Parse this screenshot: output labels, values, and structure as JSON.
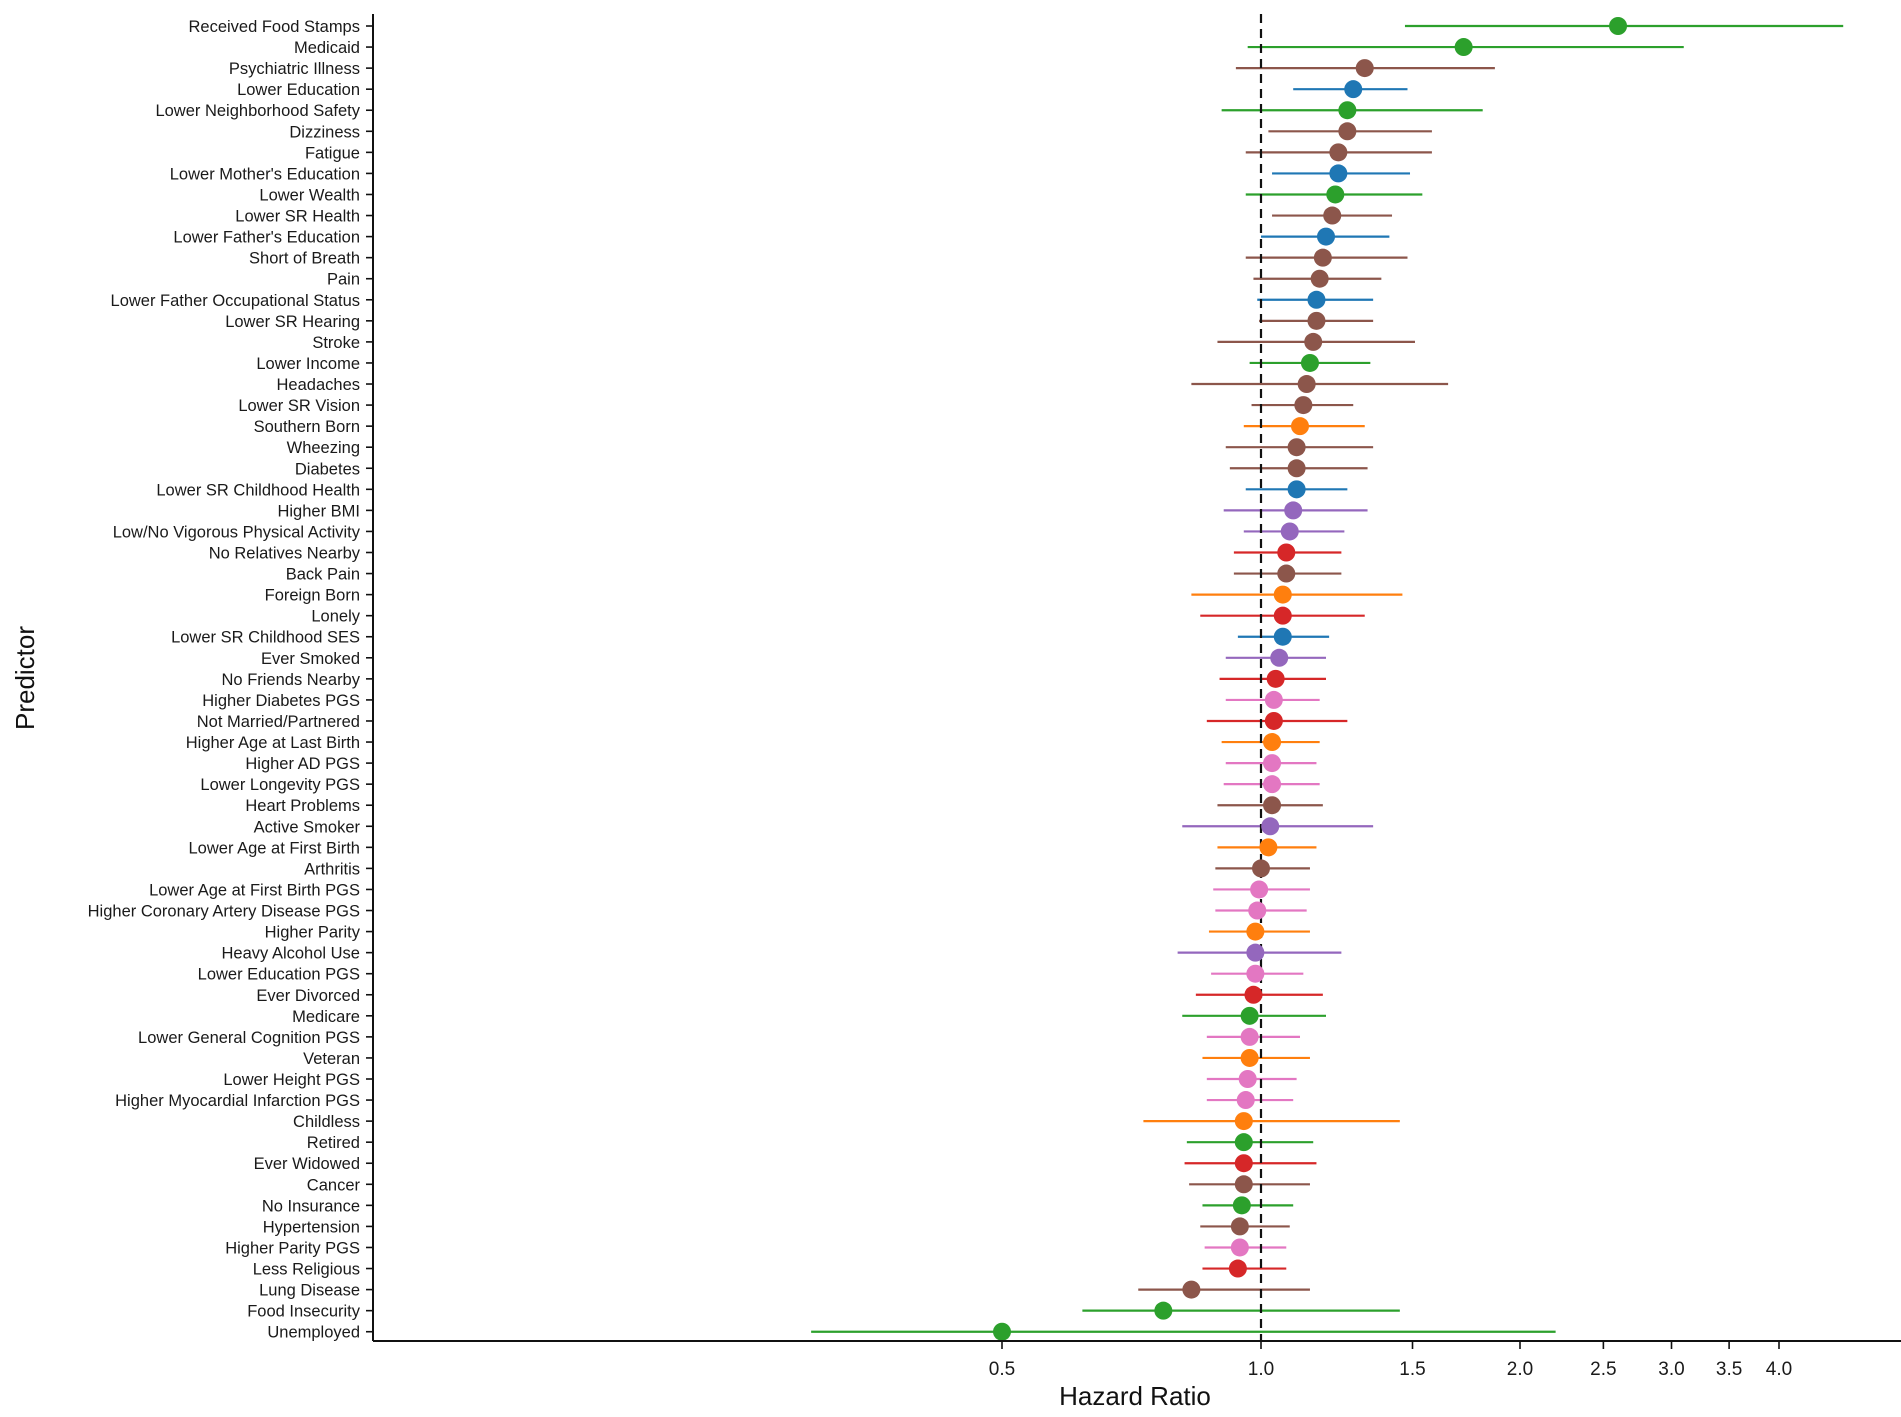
{
  "chart_data": {
    "type": "scatter",
    "subtype": "forest-plot",
    "title": "",
    "xlabel": "Hazard Ratio",
    "ylabel": "Predictor",
    "x_scale": "log",
    "xlim": [
      0.26,
      5.1
    ],
    "xticks": [
      0.5,
      1.0,
      1.5,
      2.0,
      2.5,
      3.0,
      3.5,
      4.0
    ],
    "xtick_labels": [
      "0.5",
      "1.0",
      "1.5",
      "2.0",
      "2.5",
      "3.0",
      "3.5",
      "4.0"
    ],
    "reference_line": 1.0,
    "grid": false,
    "legend": "none",
    "colors": {
      "blue": "#1f77b4",
      "orange": "#ff7f0e",
      "green": "#2ca02c",
      "red": "#d62728",
      "purple": "#9467bd",
      "brown": "#8c564b",
      "pink": "#e377c2"
    },
    "predictors": [
      {
        "label": "Received Food Stamps",
        "hr": 2.6,
        "lo": 1.47,
        "hi": 4.75,
        "color": "green"
      },
      {
        "label": "Medicaid",
        "hr": 1.72,
        "lo": 0.965,
        "hi": 3.1,
        "color": "green"
      },
      {
        "label": "Psychiatric Illness",
        "hr": 1.32,
        "lo": 0.935,
        "hi": 1.87,
        "color": "brown"
      },
      {
        "label": "Lower Education",
        "hr": 1.28,
        "lo": 1.09,
        "hi": 1.48,
        "color": "blue"
      },
      {
        "label": "Lower Neighborhood Safety",
        "hr": 1.26,
        "lo": 0.9,
        "hi": 1.81,
        "color": "green"
      },
      {
        "label": "Dizziness",
        "hr": 1.26,
        "lo": 1.02,
        "hi": 1.58,
        "color": "brown"
      },
      {
        "label": "Fatigue",
        "hr": 1.23,
        "lo": 0.96,
        "hi": 1.58,
        "color": "brown"
      },
      {
        "label": "Lower Mother's Education",
        "hr": 1.23,
        "lo": 1.03,
        "hi": 1.49,
        "color": "blue"
      },
      {
        "label": "Lower Wealth",
        "hr": 1.22,
        "lo": 0.96,
        "hi": 1.54,
        "color": "green"
      },
      {
        "label": "Lower SR Health",
        "hr": 1.21,
        "lo": 1.03,
        "hi": 1.42,
        "color": "brown"
      },
      {
        "label": "Lower Father's Education",
        "hr": 1.19,
        "lo": 1.0,
        "hi": 1.41,
        "color": "blue"
      },
      {
        "label": "Short of Breath",
        "hr": 1.18,
        "lo": 0.96,
        "hi": 1.48,
        "color": "brown"
      },
      {
        "label": "Pain",
        "hr": 1.17,
        "lo": 0.98,
        "hi": 1.38,
        "color": "brown"
      },
      {
        "label": "Lower Father Occupational Status",
        "hr": 1.16,
        "lo": 0.99,
        "hi": 1.35,
        "color": "blue"
      },
      {
        "label": "Lower SR Hearing",
        "hr": 1.16,
        "lo": 0.995,
        "hi": 1.35,
        "color": "brown"
      },
      {
        "label": "Stroke",
        "hr": 1.15,
        "lo": 0.89,
        "hi": 1.51,
        "color": "brown"
      },
      {
        "label": "Lower Income",
        "hr": 1.14,
        "lo": 0.97,
        "hi": 1.34,
        "color": "green"
      },
      {
        "label": "Headaches",
        "hr": 1.13,
        "lo": 0.83,
        "hi": 1.65,
        "color": "brown"
      },
      {
        "label": "Lower SR Vision",
        "hr": 1.12,
        "lo": 0.975,
        "hi": 1.28,
        "color": "brown"
      },
      {
        "label": "Southern Born",
        "hr": 1.11,
        "lo": 0.955,
        "hi": 1.32,
        "color": "orange"
      },
      {
        "label": "Wheezing",
        "hr": 1.1,
        "lo": 0.91,
        "hi": 1.35,
        "color": "brown"
      },
      {
        "label": "Diabetes",
        "hr": 1.1,
        "lo": 0.92,
        "hi": 1.33,
        "color": "brown"
      },
      {
        "label": "Lower SR Childhood Health",
        "hr": 1.1,
        "lo": 0.96,
        "hi": 1.26,
        "color": "blue"
      },
      {
        "label": "Higher BMI",
        "hr": 1.09,
        "lo": 0.905,
        "hi": 1.33,
        "color": "purple"
      },
      {
        "label": "Low/No Vigorous Physical Activity",
        "hr": 1.08,
        "lo": 0.955,
        "hi": 1.25,
        "color": "purple"
      },
      {
        "label": "No Relatives Nearby",
        "hr": 1.07,
        "lo": 0.93,
        "hi": 1.24,
        "color": "red"
      },
      {
        "label": "Back Pain",
        "hr": 1.07,
        "lo": 0.93,
        "hi": 1.24,
        "color": "brown"
      },
      {
        "label": "Foreign Born",
        "hr": 1.06,
        "lo": 0.83,
        "hi": 1.46,
        "color": "orange"
      },
      {
        "label": "Lonely",
        "hr": 1.06,
        "lo": 0.85,
        "hi": 1.32,
        "color": "red"
      },
      {
        "label": "Lower SR Childhood SES",
        "hr": 1.06,
        "lo": 0.94,
        "hi": 1.2,
        "color": "blue"
      },
      {
        "label": "Ever Smoked",
        "hr": 1.05,
        "lo": 0.91,
        "hi": 1.19,
        "color": "purple"
      },
      {
        "label": "No Friends Nearby",
        "hr": 1.04,
        "lo": 0.895,
        "hi": 1.19,
        "color": "red"
      },
      {
        "label": "Higher Diabetes PGS",
        "hr": 1.035,
        "lo": 0.91,
        "hi": 1.17,
        "color": "pink"
      },
      {
        "label": "Not Married/Partnered",
        "hr": 1.035,
        "lo": 0.865,
        "hi": 1.26,
        "color": "red"
      },
      {
        "label": "Higher Age at Last Birth",
        "hr": 1.03,
        "lo": 0.9,
        "hi": 1.17,
        "color": "orange"
      },
      {
        "label": "Higher AD PGS",
        "hr": 1.03,
        "lo": 0.91,
        "hi": 1.16,
        "color": "pink"
      },
      {
        "label": "Lower Longevity PGS",
        "hr": 1.03,
        "lo": 0.905,
        "hi": 1.17,
        "color": "pink"
      },
      {
        "label": "Heart Problems",
        "hr": 1.03,
        "lo": 0.89,
        "hi": 1.18,
        "color": "brown"
      },
      {
        "label": "Active Smoker",
        "hr": 1.025,
        "lo": 0.81,
        "hi": 1.35,
        "color": "purple"
      },
      {
        "label": "Lower Age at First Birth",
        "hr": 1.02,
        "lo": 0.89,
        "hi": 1.16,
        "color": "orange"
      },
      {
        "label": "Arthritis",
        "hr": 1.0,
        "lo": 0.885,
        "hi": 1.14,
        "color": "brown"
      },
      {
        "label": "Lower Age at First Birth PGS",
        "hr": 0.995,
        "lo": 0.88,
        "hi": 1.14,
        "color": "pink"
      },
      {
        "label": "Higher Coronary Artery Disease PGS",
        "hr": 0.99,
        "lo": 0.885,
        "hi": 1.13,
        "color": "pink"
      },
      {
        "label": "Higher Parity",
        "hr": 0.985,
        "lo": 0.87,
        "hi": 1.14,
        "color": "orange"
      },
      {
        "label": "Heavy Alcohol Use",
        "hr": 0.985,
        "lo": 0.8,
        "hi": 1.24,
        "color": "purple"
      },
      {
        "label": "Lower Education PGS",
        "hr": 0.985,
        "lo": 0.875,
        "hi": 1.12,
        "color": "pink"
      },
      {
        "label": "Ever Divorced",
        "hr": 0.98,
        "lo": 0.84,
        "hi": 1.18,
        "color": "red"
      },
      {
        "label": "Medicare",
        "hr": 0.97,
        "lo": 0.81,
        "hi": 1.19,
        "color": "green"
      },
      {
        "label": "Lower General Cognition PGS",
        "hr": 0.97,
        "lo": 0.865,
        "hi": 1.11,
        "color": "pink"
      },
      {
        "label": "Veteran",
        "hr": 0.97,
        "lo": 0.855,
        "hi": 1.14,
        "color": "orange"
      },
      {
        "label": "Lower Height PGS",
        "hr": 0.965,
        "lo": 0.865,
        "hi": 1.1,
        "color": "pink"
      },
      {
        "label": "Higher Myocardial Infarction PGS",
        "hr": 0.96,
        "lo": 0.865,
        "hi": 1.09,
        "color": "pink"
      },
      {
        "label": "Childless",
        "hr": 0.955,
        "lo": 0.73,
        "hi": 1.45,
        "color": "orange"
      },
      {
        "label": "Retired",
        "hr": 0.955,
        "lo": 0.82,
        "hi": 1.15,
        "color": "green"
      },
      {
        "label": "Ever Widowed",
        "hr": 0.955,
        "lo": 0.815,
        "hi": 1.16,
        "color": "red"
      },
      {
        "label": "Cancer",
        "hr": 0.955,
        "lo": 0.825,
        "hi": 1.14,
        "color": "brown"
      },
      {
        "label": "No Insurance",
        "hr": 0.95,
        "lo": 0.855,
        "hi": 1.09,
        "color": "green"
      },
      {
        "label": "Hypertension",
        "hr": 0.945,
        "lo": 0.85,
        "hi": 1.08,
        "color": "brown"
      },
      {
        "label": "Higher Parity PGS",
        "hr": 0.945,
        "lo": 0.86,
        "hi": 1.07,
        "color": "pink"
      },
      {
        "label": "Less Religious",
        "hr": 0.94,
        "lo": 0.855,
        "hi": 1.07,
        "color": "red"
      },
      {
        "label": "Lung Disease",
        "hr": 0.83,
        "lo": 0.72,
        "hi": 1.14,
        "color": "brown"
      },
      {
        "label": "Food Insecurity",
        "hr": 0.77,
        "lo": 0.62,
        "hi": 1.45,
        "color": "green"
      },
      {
        "label": "Unemployed",
        "hr": 0.5,
        "lo": 0.3,
        "hi": 2.2,
        "color": "green"
      }
    ]
  }
}
